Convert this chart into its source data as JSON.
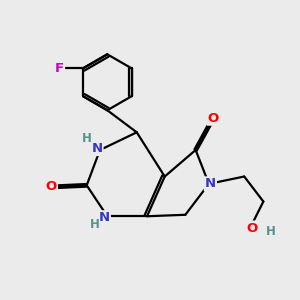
{
  "bg_color": "#ebebeb",
  "atom_color_N": "#3535c8",
  "atom_color_O": "#ff0000",
  "atom_color_F": "#cc00cc",
  "atom_color_C": "#000000",
  "atom_color_H_label": "#5a9090",
  "bond_color": "#000000",
  "figsize": [
    3.0,
    3.0
  ],
  "dpi": 100,
  "xlim": [
    0,
    10
  ],
  "ylim": [
    0,
    10
  ]
}
